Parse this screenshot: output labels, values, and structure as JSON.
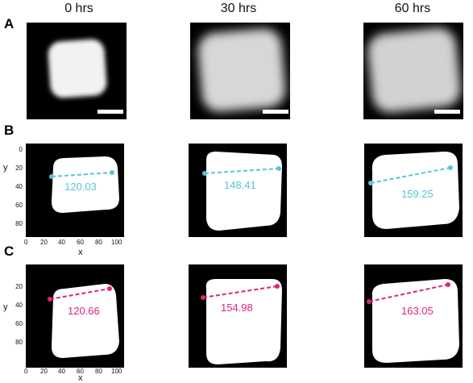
{
  "columns": [
    "0 hrs",
    "30 hrs",
    "60 hrs"
  ],
  "rows": [
    "A",
    "B",
    "C"
  ],
  "axes": {
    "x_label": "x",
    "y_label": "y",
    "x_ticks": [
      "0",
      "20",
      "40",
      "60",
      "80",
      "100"
    ],
    "y_ticks": [
      "0",
      "20",
      "40",
      "60",
      "80"
    ]
  },
  "measurements": {
    "B": [
      "120.03",
      "148.41",
      "159.25"
    ],
    "C": [
      "120.66",
      "154.98",
      "163.05"
    ]
  },
  "colors": {
    "row_b_line": "#5bc3d9",
    "row_c_line": "#e0227a",
    "background": "#000000",
    "shape": "#ffffff"
  }
}
